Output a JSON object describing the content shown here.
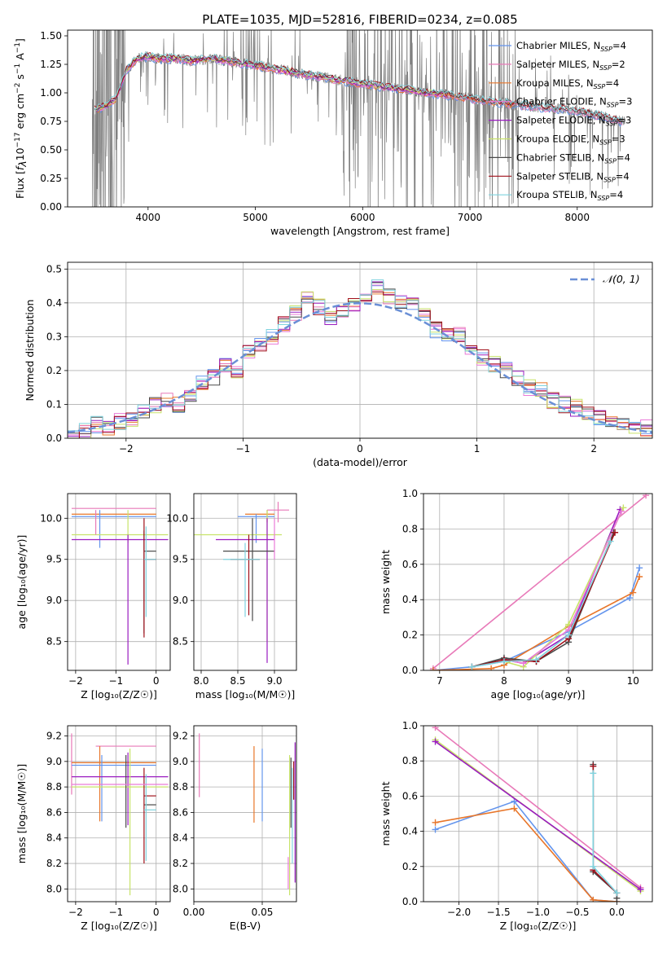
{
  "figure_title": "PLATE=1035, MJD=52816, FIBERID=0234, z=0.085",
  "colors": {
    "Chabrier MILES": "#6495ed",
    "Salpeter MILES": "#e879b8",
    "Kroupa MILES": "#e8762a",
    "Chabrier ELODIE": "#ea7ad8",
    "Salpeter ELODIE": "#9a1cc0",
    "Kroupa ELODIE": "#c8e36a",
    "Chabrier STELIB": "#4a4a4a",
    "Salpeter STELIB": "#a0101a",
    "Kroupa STELIB": "#7fd3de",
    "data": "#808080",
    "normal": "#6a8fd6"
  },
  "chart_data": [
    {
      "id": "spectrum",
      "type": "line",
      "title": "",
      "xlabel": "wavelength [Angstrom, rest frame]",
      "ylabel": "Flux [f_λ 10^-17 erg cm^-2 s^-1 A^-1]",
      "xlim": [
        3250,
        8700
      ],
      "ylim": [
        0,
        1.55
      ],
      "xticks": [
        4000,
        5000,
        6000,
        7000,
        8000
      ],
      "yticks": [
        0.0,
        0.25,
        0.5,
        0.75,
        1.0,
        1.25,
        1.5
      ],
      "grid": false,
      "legend_position": "right",
      "legend": [
        {
          "label": "Chabrier MILES, N",
          "sub": "SSP",
          "suffix": "=4",
          "key": "Chabrier MILES"
        },
        {
          "label": "Salpeter MILES, N",
          "sub": "SSP",
          "suffix": "=2",
          "key": "Salpeter MILES"
        },
        {
          "label": "Kroupa MILES, N",
          "sub": "SSP",
          "suffix": "=4",
          "key": "Kroupa MILES"
        },
        {
          "label": "Chabrier ELODIE, N",
          "sub": "SSP",
          "suffix": "=3",
          "key": "Chabrier ELODIE"
        },
        {
          "label": "Salpeter ELODIE, N",
          "sub": "SSP",
          "suffix": "=3",
          "key": "Salpeter ELODIE"
        },
        {
          "label": "Kroupa ELODIE, N",
          "sub": "SSP",
          "suffix": "=3",
          "key": "Kroupa ELODIE"
        },
        {
          "label": "Chabrier STELIB, N",
          "sub": "SSP",
          "suffix": "=4",
          "key": "Chabrier STELIB"
        },
        {
          "label": "Salpeter STELIB, N",
          "sub": "SSP",
          "suffix": "=4",
          "key": "Salpeter STELIB"
        },
        {
          "label": "Kroupa STELIB, N",
          "sub": "SSP",
          "suffix": "=4",
          "key": "Kroupa STELIB"
        }
      ],
      "model_continuum": [
        [
          3500,
          0.85
        ],
        [
          3600,
          0.88
        ],
        [
          3700,
          0.95
        ],
        [
          3800,
          1.2
        ],
        [
          3900,
          1.3
        ],
        [
          4000,
          1.32
        ],
        [
          4100,
          1.3
        ],
        [
          4200,
          1.3
        ],
        [
          4300,
          1.3
        ],
        [
          4400,
          1.28
        ],
        [
          4600,
          1.3
        ],
        [
          4800,
          1.27
        ],
        [
          5000,
          1.24
        ],
        [
          5200,
          1.21
        ],
        [
          5400,
          1.17
        ],
        [
          5600,
          1.14
        ],
        [
          5800,
          1.11
        ],
        [
          6000,
          1.08
        ],
        [
          6200,
          1.05
        ],
        [
          6400,
          1.03
        ],
        [
          6600,
          1.0
        ],
        [
          6800,
          0.98
        ],
        [
          7000,
          0.95
        ],
        [
          7200,
          0.92
        ],
        [
          7400,
          0.9
        ],
        [
          7600,
          0.88
        ],
        [
          7800,
          0.86
        ],
        [
          8000,
          0.84
        ],
        [
          8200,
          0.8
        ],
        [
          8400,
          0.75
        ]
      ]
    },
    {
      "id": "residuals",
      "type": "step",
      "xlabel": "(data-model)/error",
      "ylabel": "Normed distribution",
      "xlim": [
        -2.5,
        2.5
      ],
      "ylim": [
        0,
        0.52
      ],
      "xticks": [
        -2,
        -1,
        0,
        1,
        2
      ],
      "yticks": [
        0.0,
        0.1,
        0.2,
        0.3,
        0.4,
        0.5
      ],
      "grid": true,
      "legend_position": "top-right",
      "legend": [
        {
          "label": "𝒩(0, 1)",
          "key": "normal"
        }
      ],
      "bin_centers": [
        -2.45,
        -2.35,
        -2.25,
        -2.15,
        -2.05,
        -1.95,
        -1.85,
        -1.75,
        -1.65,
        -1.55,
        -1.45,
        -1.35,
        -1.25,
        -1.15,
        -1.05,
        -0.95,
        -0.85,
        -0.75,
        -0.65,
        -0.55,
        -0.45,
        -0.35,
        -0.25,
        -0.15,
        -0.05,
        0.05,
        0.15,
        0.25,
        0.35,
        0.45,
        0.55,
        0.65,
        0.75,
        0.85,
        0.95,
        1.05,
        1.15,
        1.25,
        1.35,
        1.45,
        1.55,
        1.65,
        1.75,
        1.85,
        1.95,
        2.05,
        2.15,
        2.25,
        2.35,
        2.45
      ],
      "histogram": [
        0.01,
        0.02,
        0.04,
        0.03,
        0.05,
        0.06,
        0.08,
        0.1,
        0.11,
        0.1,
        0.13,
        0.16,
        0.18,
        0.22,
        0.2,
        0.25,
        0.28,
        0.3,
        0.34,
        0.37,
        0.41,
        0.39,
        0.36,
        0.38,
        0.4,
        0.41,
        0.45,
        0.42,
        0.4,
        0.39,
        0.36,
        0.32,
        0.3,
        0.31,
        0.27,
        0.24,
        0.22,
        0.2,
        0.18,
        0.15,
        0.14,
        0.11,
        0.1,
        0.09,
        0.07,
        0.06,
        0.05,
        0.04,
        0.03,
        0.03
      ]
    },
    {
      "id": "age-vs-Z",
      "type": "errorbar",
      "xlabel": "Z [log₁₀(Z/Z☉)]",
      "ylabel": "age  [log₁₀(age/yr)]",
      "xlim": [
        -2.2,
        0.35
      ],
      "ylim": [
        8.15,
        10.3
      ],
      "xticks": [
        -2,
        -1,
        0
      ],
      "yticks": [
        8.5,
        9.0,
        9.5,
        10.0
      ],
      "grid": true
    },
    {
      "id": "age-vs-mass",
      "type": "errorbar",
      "xlabel": "mass [log₁₀(M/M☉)]",
      "ylabel": "",
      "xlim": [
        7.9,
        9.3
      ],
      "ylim": [
        8.15,
        10.3
      ],
      "xticks": [
        8.0,
        8.5,
        9.0
      ],
      "yticks": [
        8.5,
        9.0,
        9.5,
        10.0
      ],
      "grid": true
    },
    {
      "id": "massweight-vs-age",
      "type": "line",
      "xlabel": "age  [log₁₀(age/yr)]",
      "ylabel": "mass weight",
      "xlim": [
        6.75,
        10.3
      ],
      "ylim": [
        0,
        1.0
      ],
      "xticks": [
        7,
        8,
        9,
        10
      ],
      "yticks": [
        0.0,
        0.2,
        0.4,
        0.6,
        0.8,
        1.0
      ],
      "grid": true,
      "series": [
        {
          "key": "Salpeter MILES",
          "x": [
            6.9,
            10.2
          ],
          "y": [
            0.01,
            0.99
          ]
        },
        {
          "key": "Chabrier MILES",
          "x": [
            6.9,
            7.5,
            8.0,
            9.0,
            9.95,
            10.1
          ],
          "y": [
            0.0,
            0.02,
            0.05,
            0.22,
            0.41,
            0.58
          ]
        },
        {
          "key": "Kroupa MILES",
          "x": [
            6.9,
            7.8,
            8.0,
            9.0,
            10.0,
            10.1
          ],
          "y": [
            0.0,
            0.01,
            0.03,
            0.25,
            0.44,
            0.53
          ]
        },
        {
          "key": "Salpeter ELODIE",
          "x": [
            8.0,
            8.3,
            9.0,
            9.8
          ],
          "y": [
            0.06,
            0.04,
            0.2,
            0.91
          ]
        },
        {
          "key": "Kroupa ELODIE",
          "x": [
            8.0,
            8.3,
            9.0,
            9.85
          ],
          "y": [
            0.05,
            0.02,
            0.26,
            0.92
          ]
        },
        {
          "key": "Chabrier ELODIE",
          "x": [
            8.0,
            8.3,
            9.0,
            9.82
          ],
          "y": [
            0.06,
            0.04,
            0.23,
            0.9
          ]
        },
        {
          "key": "Chabrier STELIB",
          "x": [
            7.5,
            8.0,
            8.5,
            9.0,
            9.7
          ],
          "y": [
            0.02,
            0.07,
            0.05,
            0.16,
            0.78
          ]
        },
        {
          "key": "Salpeter STELIB",
          "x": [
            7.5,
            8.0,
            8.5,
            9.0,
            9.72
          ],
          "y": [
            0.02,
            0.06,
            0.05,
            0.18,
            0.78
          ]
        },
        {
          "key": "Kroupa STELIB",
          "x": [
            7.5,
            8.0,
            8.5,
            9.0,
            9.65
          ],
          "y": [
            0.02,
            0.05,
            0.06,
            0.2,
            0.73
          ]
        }
      ]
    },
    {
      "id": "mass-vs-Z",
      "type": "errorbar",
      "xlabel": "Z [log₁₀(Z/Z☉)]",
      "ylabel": "mass [log₁₀(M/M☉)]",
      "xlim": [
        -2.2,
        0.35
      ],
      "ylim": [
        7.9,
        9.28
      ],
      "xticks": [
        -2,
        -1,
        0
      ],
      "yticks": [
        8.0,
        8.2,
        8.4,
        8.6,
        8.8,
        9.0,
        9.2
      ],
      "grid": true
    },
    {
      "id": "mass-vs-EBV",
      "type": "errorbar",
      "xlabel": "E(B-V)",
      "ylabel": "",
      "xlim": [
        0.0,
        0.075
      ],
      "ylim": [
        7.9,
        9.28
      ],
      "xticks": [
        0.0,
        0.05
      ],
      "yticks": [
        8.0,
        8.2,
        8.4,
        8.6,
        8.8,
        9.0,
        9.2
      ],
      "grid": true
    },
    {
      "id": "massweight-vs-Z",
      "type": "line",
      "xlabel": "Z [log₁₀(Z/Z☉)]",
      "ylabel": "mass weight",
      "xlim": [
        -2.45,
        0.45
      ],
      "ylim": [
        0,
        1.0
      ],
      "xticks": [
        -2.0,
        -1.5,
        -1.0,
        -0.5,
        0.0
      ],
      "yticks": [
        0.0,
        0.2,
        0.4,
        0.6,
        0.8,
        1.0
      ],
      "grid": true,
      "series": [
        {
          "key": "Salpeter MILES",
          "x": [
            -2.3,
            0.3
          ],
          "y": [
            0.99,
            0.08
          ]
        },
        {
          "key": "Chabrier MILES",
          "x": [
            -2.3,
            -1.3,
            -0.3,
            0.0
          ],
          "y": [
            0.41,
            0.57,
            0.01,
            0.0
          ]
        },
        {
          "key": "Kroupa MILES",
          "x": [
            -2.3,
            -1.3,
            -0.3,
            0.0
          ],
          "y": [
            0.45,
            0.53,
            0.01,
            0.0
          ]
        },
        {
          "key": "Kroupa ELODIE",
          "x": [
            -2.3,
            0.3
          ],
          "y": [
            0.92,
            0.06
          ]
        },
        {
          "key": "Salpeter ELODIE",
          "x": [
            -2.3,
            0.3
          ],
          "y": [
            0.91,
            0.07
          ]
        },
        {
          "key": "Chabrier STELIB",
          "x": [
            -0.3,
            -0.3,
            0.0,
            0.0
          ],
          "y": [
            0.78,
            0.17,
            0.05,
            0.02
          ]
        },
        {
          "key": "Salpeter STELIB",
          "x": [
            -0.3,
            -0.3,
            0.0
          ],
          "y": [
            0.77,
            0.18,
            0.05
          ]
        },
        {
          "key": "Kroupa STELIB",
          "x": [
            -0.3,
            -0.3,
            0.0
          ],
          "y": [
            0.73,
            0.2,
            0.05
          ]
        }
      ]
    }
  ]
}
